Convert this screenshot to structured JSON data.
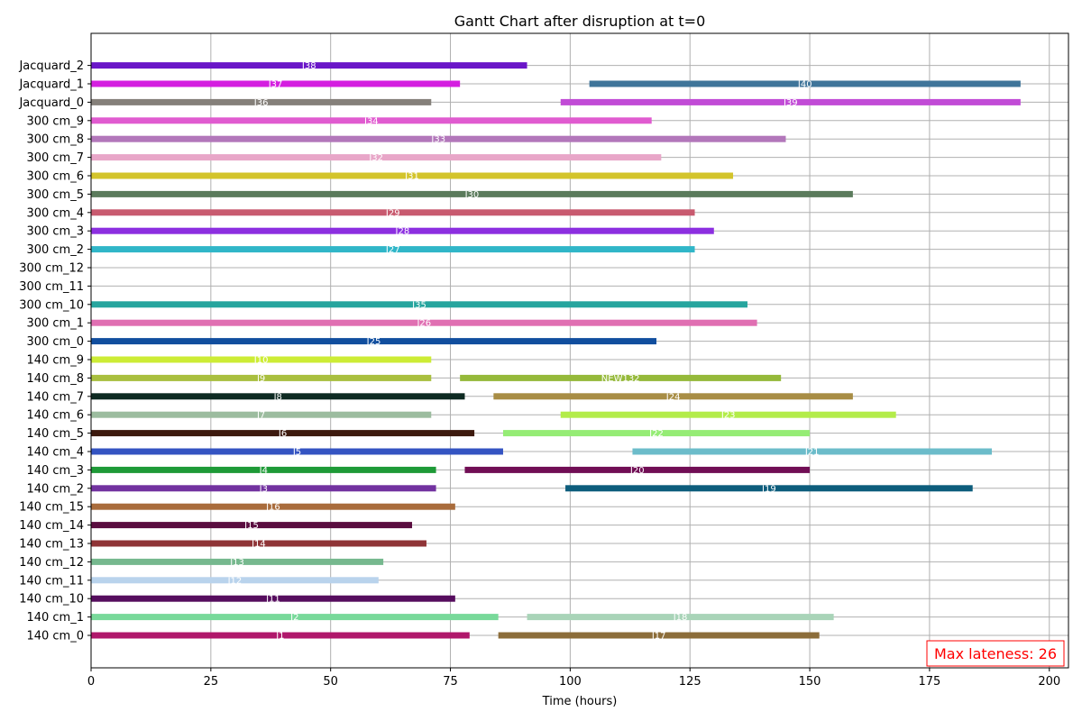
{
  "chart_data": {
    "type": "gantt",
    "title": "Gantt Chart after disruption at t=0",
    "xlabel": "Time (hours)",
    "ylabel": "",
    "xlim": [
      0,
      204
    ],
    "xticks": [
      0,
      25,
      50,
      75,
      100,
      125,
      150,
      175,
      200
    ],
    "grid": true,
    "annotation": {
      "text": "Max lateness: 26",
      "color": "#ff0000",
      "placement": "bottom-right"
    },
    "machines": [
      "140 cm_0",
      "140 cm_1",
      "140 cm_10",
      "140 cm_11",
      "140 cm_12",
      "140 cm_13",
      "140 cm_14",
      "140 cm_15",
      "140 cm_2",
      "140 cm_3",
      "140 cm_4",
      "140 cm_5",
      "140 cm_6",
      "140 cm_7",
      "140 cm_8",
      "140 cm_9",
      "300 cm_0",
      "300 cm_1",
      "300 cm_10",
      "300 cm_11",
      "300 cm_12",
      "300 cm_2",
      "300 cm_3",
      "300 cm_4",
      "300 cm_5",
      "300 cm_6",
      "300 cm_7",
      "300 cm_8",
      "300 cm_9",
      "Jacquard_0",
      "Jacquard_1",
      "Jacquard_2"
    ],
    "tasks": [
      {
        "machine": "140 cm_0",
        "label": "J1",
        "start": 0,
        "end": 79,
        "color": "#b0186b"
      },
      {
        "machine": "140 cm_0",
        "label": "J17",
        "start": 85,
        "end": 152,
        "color": "#8c6d3a"
      },
      {
        "machine": "140 cm_1",
        "label": "J2",
        "start": 0,
        "end": 85,
        "color": "#78d99a"
      },
      {
        "machine": "140 cm_1",
        "label": "J18",
        "start": 91,
        "end": 155,
        "color": "#a9d4b8"
      },
      {
        "machine": "140 cm_10",
        "label": "J11",
        "start": 0,
        "end": 76,
        "color": "#560d5e"
      },
      {
        "machine": "140 cm_11",
        "label": "J12",
        "start": 0,
        "end": 60,
        "color": "#b9d3ec"
      },
      {
        "machine": "140 cm_12",
        "label": "J13",
        "start": 0,
        "end": 61,
        "color": "#76b88e"
      },
      {
        "machine": "140 cm_13",
        "label": "J14",
        "start": 0,
        "end": 70,
        "color": "#8f3437"
      },
      {
        "machine": "140 cm_14",
        "label": "J15",
        "start": 0,
        "end": 67,
        "color": "#5a0d40"
      },
      {
        "machine": "140 cm_15",
        "label": "J16",
        "start": 0,
        "end": 76,
        "color": "#a96c3c"
      },
      {
        "machine": "140 cm_2",
        "label": "J3",
        "start": 0,
        "end": 72,
        "color": "#7232a0"
      },
      {
        "machine": "140 cm_2",
        "label": "J19",
        "start": 99,
        "end": 184,
        "color": "#0d5d7c"
      },
      {
        "machine": "140 cm_3",
        "label": "J4",
        "start": 0,
        "end": 72,
        "color": "#1e9a37"
      },
      {
        "machine": "140 cm_3",
        "label": "J20",
        "start": 78,
        "end": 150,
        "color": "#710e55"
      },
      {
        "machine": "140 cm_4",
        "label": "J5",
        "start": 0,
        "end": 86,
        "color": "#3454c2"
      },
      {
        "machine": "140 cm_4",
        "label": "J21",
        "start": 113,
        "end": 188,
        "color": "#6cbcca"
      },
      {
        "machine": "140 cm_5",
        "label": "J6",
        "start": 0,
        "end": 80,
        "color": "#3d1a0e"
      },
      {
        "machine": "140 cm_5",
        "label": "J22",
        "start": 86,
        "end": 150,
        "color": "#95ec75"
      },
      {
        "machine": "140 cm_6",
        "label": "J7",
        "start": 0,
        "end": 71,
        "color": "#9cbc9f"
      },
      {
        "machine": "140 cm_6",
        "label": "J23",
        "start": 98,
        "end": 168,
        "color": "#b3ec4a"
      },
      {
        "machine": "140 cm_7",
        "label": "J8",
        "start": 0,
        "end": 78,
        "color": "#0e2a22"
      },
      {
        "machine": "140 cm_7",
        "label": "J24",
        "start": 84,
        "end": 159,
        "color": "#a88d45"
      },
      {
        "machine": "140 cm_8",
        "label": "J9",
        "start": 0,
        "end": 71,
        "color": "#a9bf3f"
      },
      {
        "machine": "140 cm_8",
        "label": "NEW132",
        "start": 77,
        "end": 144,
        "color": "#95b93a"
      },
      {
        "machine": "140 cm_9",
        "label": "J10",
        "start": 0,
        "end": 71,
        "color": "#cdec35"
      },
      {
        "machine": "300 cm_0",
        "label": "J25",
        "start": 0,
        "end": 118,
        "color": "#114e9e"
      },
      {
        "machine": "300 cm_1",
        "label": "J26",
        "start": 0,
        "end": 139,
        "color": "#e06fb2"
      },
      {
        "machine": "300 cm_10",
        "label": "J35",
        "start": 0,
        "end": 137,
        "color": "#26a59e"
      },
      {
        "machine": "300 cm_2",
        "label": "J27",
        "start": 0,
        "end": 126,
        "color": "#30b6c8"
      },
      {
        "machine": "300 cm_3",
        "label": "J28",
        "start": 0,
        "end": 130,
        "color": "#8c2fe0"
      },
      {
        "machine": "300 cm_4",
        "label": "J29",
        "start": 0,
        "end": 126,
        "color": "#c85a6f"
      },
      {
        "machine": "300 cm_5",
        "label": "J30",
        "start": 0,
        "end": 159,
        "color": "#5b7b5c"
      },
      {
        "machine": "300 cm_6",
        "label": "J31",
        "start": 0,
        "end": 134,
        "color": "#d3c42b"
      },
      {
        "machine": "300 cm_7",
        "label": "J32",
        "start": 0,
        "end": 119,
        "color": "#e8a6c8"
      },
      {
        "machine": "300 cm_8",
        "label": "J33",
        "start": 0,
        "end": 145,
        "color": "#b277ba"
      },
      {
        "machine": "300 cm_9",
        "label": "J34",
        "start": 0,
        "end": 117,
        "color": "#e05bd0"
      },
      {
        "machine": "Jacquard_0",
        "label": "J36",
        "start": 0,
        "end": 71,
        "color": "#85807a"
      },
      {
        "machine": "Jacquard_0",
        "label": "J39",
        "start": 98,
        "end": 194,
        "color": "#c14bd6"
      },
      {
        "machine": "Jacquard_1",
        "label": "J37",
        "start": 0,
        "end": 77,
        "color": "#d41ee0"
      },
      {
        "machine": "Jacquard_1",
        "label": "J40",
        "start": 104,
        "end": 194,
        "color": "#3f759a"
      },
      {
        "machine": "Jacquard_2",
        "label": "J38",
        "start": 0,
        "end": 91,
        "color": "#6a16c8"
      }
    ]
  }
}
